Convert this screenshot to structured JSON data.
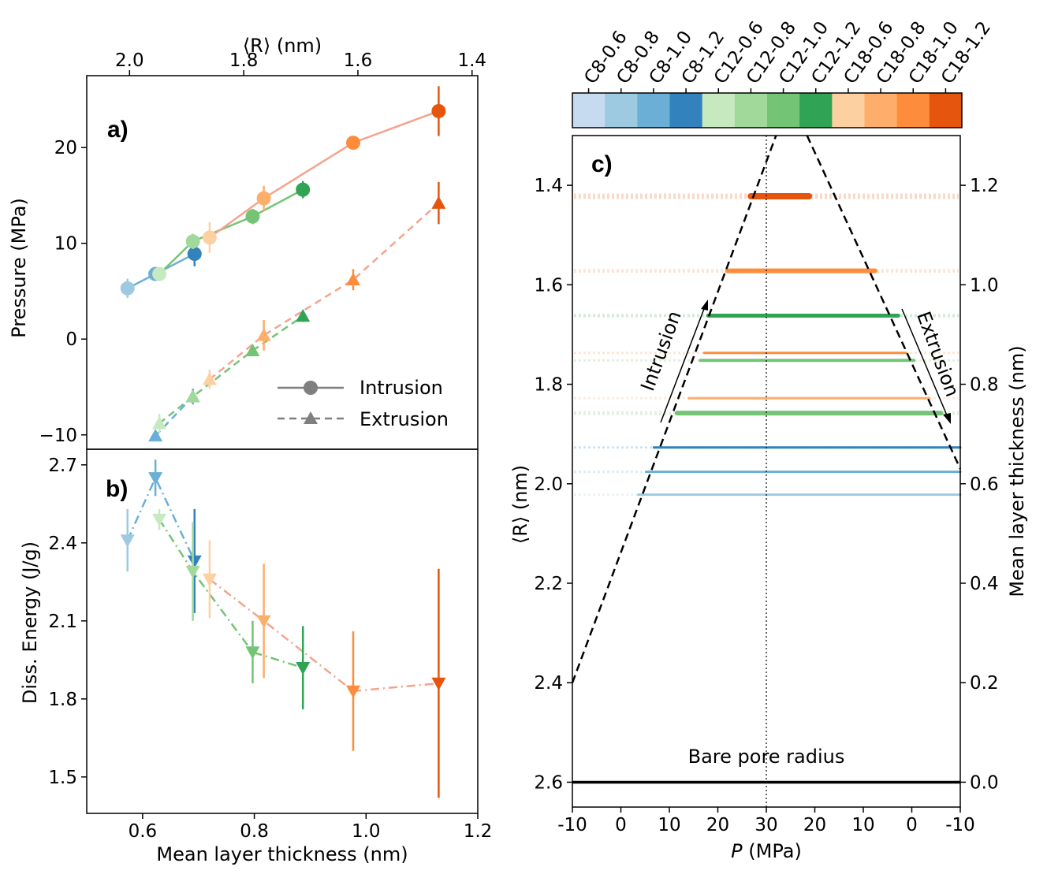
{
  "chart_data": [
    {
      "panel": "a",
      "type": "line",
      "panel_label": "a)",
      "ylabel": "Pressure (MPa)",
      "xlabel": "Mean layer thickness (nm)",
      "top_axis_label": "⟨R⟩ (nm)",
      "top_ticks": [
        {
          "v": 2.0,
          "t": "2.0"
        },
        {
          "v": 1.8,
          "t": "1.8"
        },
        {
          "v": 1.6,
          "t": "1.6"
        },
        {
          "v": 1.4,
          "t": "1.4"
        }
      ],
      "xlim": [
        0.5,
        1.2
      ],
      "ylim": [
        -11.5,
        27.5
      ],
      "yticks": [
        {
          "v": 20,
          "t": "20"
        },
        {
          "v": 10,
          "t": "10"
        },
        {
          "v": 0,
          "t": "0"
        },
        {
          "v": -10,
          "t": "−10"
        }
      ],
      "legend": {
        "position": "lower-right",
        "items": [
          {
            "label": "Intrusion",
            "marker": "circle",
            "style": "solid"
          },
          {
            "label": "Extrusion",
            "marker": "triangle",
            "style": "dashed"
          }
        ]
      },
      "series": [
        {
          "name": "C8 intrusion",
          "style": "solid",
          "color": "#6baed6",
          "marker": "circle",
          "points": [
            {
              "x": 0.573,
              "y": 5.3,
              "err": 1.0,
              "c": "#9ecae1"
            },
            {
              "x": 0.623,
              "y": 6.8,
              "err": 0.6,
              "c": "#6baed6"
            },
            {
              "x": 0.693,
              "y": 8.9,
              "err": 1.3,
              "c": "#3182bd"
            }
          ]
        },
        {
          "name": "C12 intrusion",
          "style": "solid",
          "color": "#74c476",
          "marker": "circle",
          "points": [
            {
              "x": 0.63,
              "y": 6.8,
              "err": 0.6,
              "c": "#c7e9c0"
            },
            {
              "x": 0.69,
              "y": 10.2,
              "err": 0.8,
              "c": "#a1d99b"
            },
            {
              "x": 0.797,
              "y": 12.8,
              "err": 0.8,
              "c": "#74c476"
            },
            {
              "x": 0.887,
              "y": 15.6,
              "err": 0.9,
              "c": "#31a354"
            }
          ]
        },
        {
          "name": "C18 intrusion",
          "style": "solid",
          "color": "#f4a48e",
          "marker": "circle",
          "points": [
            {
              "x": 0.72,
              "y": 10.6,
              "err": 1.6,
              "c": "#fdd0a2"
            },
            {
              "x": 0.817,
              "y": 14.7,
              "err": 1.3,
              "c": "#fdae6b"
            },
            {
              "x": 0.977,
              "y": 20.5,
              "err": 0.7,
              "c": "#fd8d3c"
            },
            {
              "x": 1.13,
              "y": 23.8,
              "err": 2.6,
              "c": "#e6550d"
            }
          ]
        },
        {
          "name": "C8 extrusion",
          "style": "dashed",
          "color": "#6baed6",
          "marker": "triangle",
          "points": [
            {
              "x": 0.623,
              "y": -10.1,
              "err": 0.4,
              "c": "#6baed6"
            },
            {
              "x": 0.69,
              "y": -6.0,
              "err": 0.8,
              "c": "#3182bd"
            }
          ]
        },
        {
          "name": "C12 extrusion",
          "style": "dashed",
          "color": "#74c476",
          "marker": "triangle",
          "points": [
            {
              "x": 0.63,
              "y": -8.8,
              "err": 1.0,
              "c": "#c7e9c0"
            },
            {
              "x": 0.69,
              "y": -6.0,
              "err": 0.7,
              "c": "#a1d99b"
            },
            {
              "x": 0.797,
              "y": -1.2,
              "err": 0.6,
              "c": "#74c476"
            },
            {
              "x": 0.887,
              "y": 2.4,
              "err": 0.6,
              "c": "#31a354"
            }
          ]
        },
        {
          "name": "C18 extrusion",
          "style": "dashed",
          "color": "#f4a48e",
          "marker": "triangle",
          "points": [
            {
              "x": 0.72,
              "y": -4.2,
              "err": 1.0,
              "c": "#fdd0a2"
            },
            {
              "x": 0.817,
              "y": 0.4,
              "err": 1.6,
              "c": "#fdae6b"
            },
            {
              "x": 0.977,
              "y": 6.2,
              "err": 1.1,
              "c": "#fd8d3c"
            },
            {
              "x": 1.13,
              "y": 14.2,
              "err": 2.2,
              "c": "#e6550d"
            }
          ]
        }
      ]
    },
    {
      "panel": "b",
      "type": "scatter",
      "panel_label": "b)",
      "ylabel": "Diss. Energy (J/g)",
      "xlabel": "Mean layer thickness (nm)",
      "xlim": [
        0.5,
        1.2
      ],
      "ylim": [
        1.36,
        2.76
      ],
      "xticks": [
        {
          "v": 0.6,
          "t": "0.6"
        },
        {
          "v": 0.8,
          "t": "0.8"
        },
        {
          "v": 1.0,
          "t": "1.0"
        },
        {
          "v": 1.2,
          "t": "1.2"
        }
      ],
      "yticks": [
        {
          "v": 2.7,
          "t": "2.7"
        },
        {
          "v": 2.4,
          "t": "2.4"
        },
        {
          "v": 2.1,
          "t": "2.1"
        },
        {
          "v": 1.8,
          "t": "1.8"
        },
        {
          "v": 1.5,
          "t": "1.5"
        }
      ],
      "series": [
        {
          "name": "C8",
          "color": "#6baed6",
          "points": [
            {
              "x": 0.573,
              "y": 2.41,
              "err": 0.12,
              "c": "#9ecae1"
            },
            {
              "x": 0.623,
              "y": 2.65,
              "err": 0.07,
              "c": "#6baed6"
            },
            {
              "x": 0.693,
              "y": 2.33,
              "err": 0.2,
              "c": "#3182bd"
            }
          ]
        },
        {
          "name": "C12",
          "color": "#74c476",
          "points": [
            {
              "x": 0.63,
              "y": 2.49,
              "err": 0.04,
              "c": "#c7e9c0"
            },
            {
              "x": 0.69,
              "y": 2.29,
              "err": 0.19,
              "c": "#a1d99b"
            },
            {
              "x": 0.797,
              "y": 1.98,
              "err": 0.12,
              "c": "#74c476"
            },
            {
              "x": 0.887,
              "y": 1.92,
              "err": 0.16,
              "c": "#31a354"
            }
          ]
        },
        {
          "name": "C18",
          "color": "#f4a48e",
          "points": [
            {
              "x": 0.72,
              "y": 2.26,
              "err": 0.15,
              "c": "#fdd0a2"
            },
            {
              "x": 0.817,
              "y": 2.1,
              "err": 0.22,
              "c": "#fdae6b"
            },
            {
              "x": 0.977,
              "y": 1.83,
              "err": 0.23,
              "c": "#fd8d3c"
            },
            {
              "x": 1.13,
              "y": 1.86,
              "err": 0.44,
              "c": "#e6550d"
            }
          ]
        }
      ]
    },
    {
      "panel": "c",
      "type": "line",
      "panel_label": "c)",
      "ylabel": "⟨R⟩ (nm)",
      "ylabel_right": "Mean layer thickness (nm)",
      "xlabel": "P (MPa)",
      "xlim": [
        0,
        100
      ],
      "ylim": [
        2.65,
        1.3
      ],
      "xticks": [
        {
          "v": 0,
          "t": "-10"
        },
        {
          "v": 12.5,
          "t": "0"
        },
        {
          "v": 25,
          "t": "10"
        },
        {
          "v": 37.5,
          "t": "20"
        },
        {
          "v": 50,
          "t": "30"
        },
        {
          "v": 62.5,
          "t": "20"
        },
        {
          "v": 75,
          "t": "10"
        },
        {
          "v": 87.5,
          "t": "0"
        },
        {
          "v": 100,
          "t": "-10"
        }
      ],
      "yticks": [
        {
          "v": 1.4,
          "t": "1.4"
        },
        {
          "v": 1.6,
          "t": "1.6"
        },
        {
          "v": 1.8,
          "t": "1.8"
        },
        {
          "v": 2.0,
          "t": "2.0"
        },
        {
          "v": 2.2,
          "t": "2.2"
        },
        {
          "v": 2.4,
          "t": "2.4"
        },
        {
          "v": 2.6,
          "t": "2.6"
        }
      ],
      "yticks_right": [
        {
          "v": 1.4,
          "t": "1.2"
        },
        {
          "v": 1.6,
          "t": "1.0"
        },
        {
          "v": 1.8,
          "t": "0.8"
        },
        {
          "v": 2.0,
          "t": "0.6"
        },
        {
          "v": 2.2,
          "t": "0.4"
        },
        {
          "v": 2.4,
          "t": "0.2"
        },
        {
          "v": 2.6,
          "t": "0.0"
        }
      ],
      "colorbar": [
        "C8-0.6",
        "C8-0.8",
        "C8-1.0",
        "C8-1.2",
        "C12-0.6",
        "C12-0.8",
        "C12-1.0",
        "C12-1.2",
        "C18-0.6",
        "C18-0.8",
        "C18-1.0",
        "C18-1.2"
      ],
      "colorbar_colors": [
        "#c6dbef",
        "#9ecae1",
        "#6baed6",
        "#3182bd",
        "#c7e9c0",
        "#a1d99b",
        "#74c476",
        "#31a354",
        "#fdd0a2",
        "#fdae6b",
        "#fd8d3c",
        "#e6550d"
      ],
      "annotations": {
        "intrusion": "Intrusion",
        "extrusion": "Extrusion",
        "bare_pore": "Bare pore radius"
      },
      "bare_pore_R": 2.6,
      "center_line_x": 50,
      "cone": {
        "left": [
          [
            0,
            2.4
          ],
          [
            52.5,
            1.3
          ]
        ],
        "right": [
          [
            60.5,
            1.3
          ],
          [
            100,
            1.97
          ]
        ]
      },
      "levels": [
        {
          "R": 1.422,
          "color": "#e6550d",
          "x0": 46,
          "x1": 61,
          "w": 8
        },
        {
          "R": 1.572,
          "color": "#fd8d3c",
          "x0": 40,
          "x1": 78,
          "w": 6
        },
        {
          "R": 1.662,
          "color": "#31a354",
          "x0": 35,
          "x1": 84,
          "w": 5
        },
        {
          "R": 1.737,
          "color": "#fd8d3c",
          "x0": 34,
          "x1": 86,
          "w": 3
        },
        {
          "R": 1.752,
          "color": "#74c476",
          "x0": 33,
          "x1": 88,
          "w": 4
        },
        {
          "R": 1.828,
          "color": "#fdae6b",
          "x0": 30,
          "x1": 92,
          "w": 3
        },
        {
          "R": 1.858,
          "color": "#74c476",
          "x0": 27,
          "x1": 95,
          "w": 6
        },
        {
          "R": 1.927,
          "color": "#3182bd",
          "x0": 21,
          "x1": 100,
          "w": 3
        },
        {
          "R": 1.976,
          "color": "#6baed6",
          "x0": 19,
          "x1": 100,
          "w": 3
        },
        {
          "R": 2.022,
          "color": "#9ecae1",
          "x0": 17,
          "x1": 100,
          "w": 3
        }
      ]
    }
  ]
}
